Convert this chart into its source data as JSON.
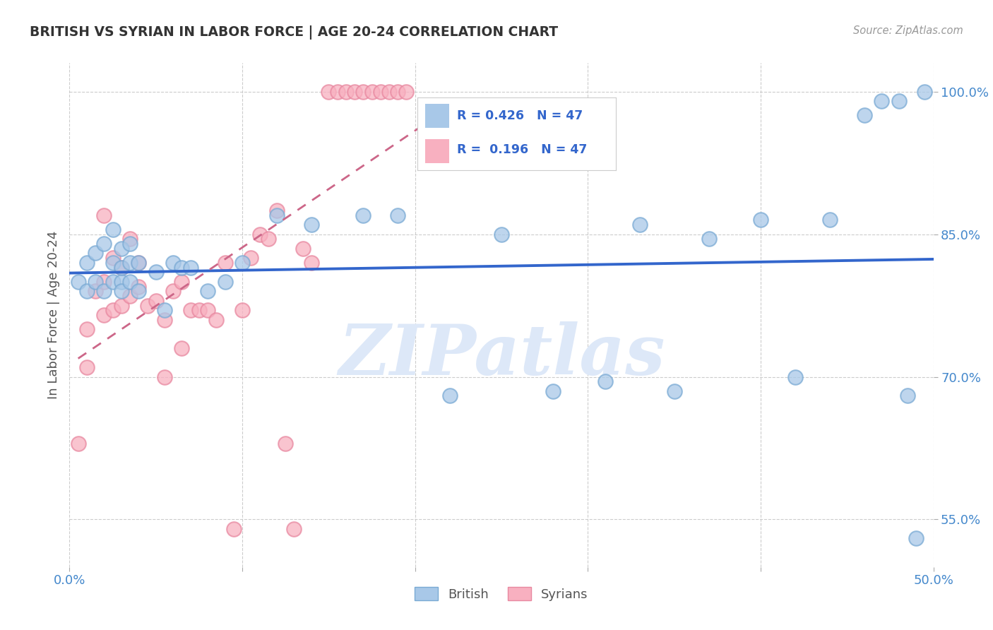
{
  "title": "BRITISH VS SYRIAN IN LABOR FORCE | AGE 20-24 CORRELATION CHART",
  "source": "Source: ZipAtlas.com",
  "ylabel": "In Labor Force | Age 20-24",
  "xlim": [
    0.0,
    0.5
  ],
  "ylim": [
    0.5,
    1.03
  ],
  "ytick_positions": [
    0.55,
    0.7,
    0.85,
    1.0
  ],
  "ytick_labels": [
    "55.0%",
    "70.0%",
    "85.0%",
    "100.0%"
  ],
  "xtick_positions": [
    0.0,
    0.1,
    0.2,
    0.3,
    0.4,
    0.5
  ],
  "xtick_labels": [
    "0.0%",
    "",
    "",
    "",
    "",
    "50.0%"
  ],
  "british_R": 0.426,
  "british_N": 47,
  "syrian_R": 0.196,
  "syrian_N": 47,
  "british_color": "#a8c8e8",
  "british_edge_color": "#7aaad4",
  "syrian_color": "#f8b0c0",
  "syrian_edge_color": "#e888a0",
  "trend_british_color": "#3366cc",
  "trend_syrian_color": "#cc6688",
  "legend_box_color": "#f8b0c0",
  "watermark": "ZIPatlas",
  "watermark_color": "#dde8f8",
  "background_color": "#ffffff",
  "grid_color": "#cccccc",
  "title_color": "#333333",
  "axis_label_color": "#555555",
  "tick_color": "#4488cc",
  "british_x": [
    0.005,
    0.01,
    0.01,
    0.015,
    0.015,
    0.02,
    0.02,
    0.025,
    0.025,
    0.025,
    0.03,
    0.03,
    0.03,
    0.03,
    0.035,
    0.035,
    0.035,
    0.04,
    0.04,
    0.05,
    0.055,
    0.06,
    0.065,
    0.07,
    0.08,
    0.09,
    0.1,
    0.12,
    0.14,
    0.17,
    0.19,
    0.22,
    0.25,
    0.28,
    0.31,
    0.33,
    0.35,
    0.37,
    0.4,
    0.42,
    0.44,
    0.46,
    0.47,
    0.48,
    0.485,
    0.49,
    0.495
  ],
  "british_y": [
    0.8,
    0.79,
    0.82,
    0.8,
    0.83,
    0.79,
    0.84,
    0.8,
    0.82,
    0.855,
    0.8,
    0.815,
    0.835,
    0.79,
    0.82,
    0.84,
    0.8,
    0.79,
    0.82,
    0.81,
    0.77,
    0.82,
    0.815,
    0.815,
    0.79,
    0.8,
    0.82,
    0.87,
    0.86,
    0.87,
    0.87,
    0.68,
    0.85,
    0.685,
    0.695,
    0.86,
    0.685,
    0.845,
    0.865,
    0.7,
    0.865,
    0.975,
    0.99,
    0.99,
    0.68,
    0.53,
    1.0
  ],
  "syrian_x": [
    0.005,
    0.01,
    0.01,
    0.015,
    0.02,
    0.02,
    0.02,
    0.025,
    0.025,
    0.03,
    0.03,
    0.035,
    0.035,
    0.04,
    0.04,
    0.045,
    0.05,
    0.055,
    0.055,
    0.06,
    0.065,
    0.065,
    0.07,
    0.075,
    0.08,
    0.085,
    0.09,
    0.095,
    0.1,
    0.105,
    0.11,
    0.115,
    0.12,
    0.125,
    0.13,
    0.135,
    0.14,
    0.15,
    0.155,
    0.16,
    0.165,
    0.17,
    0.175,
    0.18,
    0.185,
    0.19,
    0.195
  ],
  "syrian_y": [
    0.63,
    0.75,
    0.71,
    0.79,
    0.765,
    0.8,
    0.87,
    0.77,
    0.825,
    0.775,
    0.815,
    0.785,
    0.845,
    0.795,
    0.82,
    0.775,
    0.78,
    0.7,
    0.76,
    0.79,
    0.8,
    0.73,
    0.77,
    0.77,
    0.77,
    0.76,
    0.82,
    0.54,
    0.77,
    0.825,
    0.85,
    0.845,
    0.875,
    0.63,
    0.54,
    0.835,
    0.82,
    1.0,
    1.0,
    1.0,
    1.0,
    1.0,
    1.0,
    1.0,
    1.0,
    1.0,
    1.0
  ]
}
